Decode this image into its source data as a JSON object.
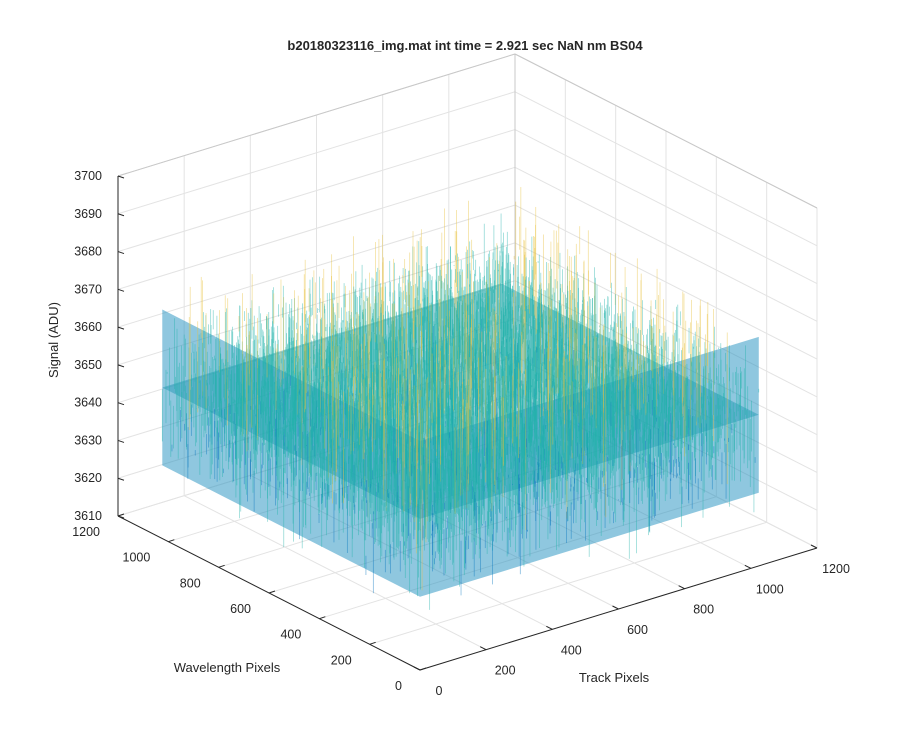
{
  "figure": {
    "title": "b20180323116_img.mat int time = 2.921 sec  NaN nm BS04"
  },
  "chart_data": {
    "type": "surface",
    "title": "b20180323116_img.mat int time = 2.921 sec  NaN nm BS04",
    "xlabel": "Track Pixels",
    "ylabel": "Wavelength Pixels",
    "zlabel": "Signal (ADU)",
    "xlim": [
      0,
      1200
    ],
    "ylim": [
      0,
      1200
    ],
    "zlim": [
      3610,
      3700
    ],
    "xticks": [
      0,
      200,
      400,
      600,
      800,
      1000,
      1200
    ],
    "yticks": [
      0,
      200,
      400,
      600,
      800,
      1000,
      1200
    ],
    "zticks": [
      3610,
      3620,
      3630,
      3640,
      3650,
      3660,
      3670,
      3680,
      3690,
      3700
    ],
    "xtick_labels": [
      "0",
      "200",
      "400",
      "600",
      "800",
      "1000",
      "1200"
    ],
    "ytick_labels": [
      "0",
      "200",
      "400",
      "600",
      "800",
      "1000",
      "1200"
    ],
    "ztick_labels": [
      "3610",
      "3620",
      "3630",
      "3640",
      "3650",
      "3660",
      "3670",
      "3680",
      "3690",
      "3700"
    ],
    "surface": {
      "x_range": [
        0,
        1024
      ],
      "y_range": [
        0,
        1024
      ],
      "mean_signal": 3650,
      "signal_range": [
        3615,
        3690
      ]
    },
    "grid": true,
    "box": true,
    "colormap": "parula",
    "colors": {
      "low": "#0072bd",
      "mid": "#20b2aa",
      "high": "#e8c03a"
    }
  }
}
